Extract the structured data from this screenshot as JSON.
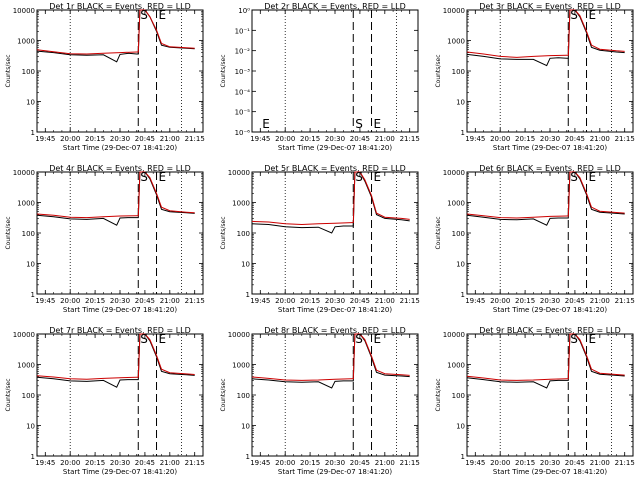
{
  "page": {},
  "chart_data": [
    {
      "type": "line",
      "title": "Det 1r BLACK = Events, RED = LLD",
      "xlabel": "Start Time (29-Dec-07 18:41:20)",
      "ylabel": "Counts/sec",
      "x_ticks": [
        "19:45",
        "20:00",
        "20:15",
        "20:30",
        "20:45",
        "21:00",
        "21:15"
      ],
      "y_ticks": [
        "1",
        "10",
        "100",
        "1000",
        "10000"
      ],
      "y_scale": "log",
      "ylim": [
        1,
        10000
      ],
      "dotted_lines": [
        "20:00",
        "21:07"
      ],
      "dashed_lines": [
        "20:41",
        "20:52"
      ],
      "markers": [
        {
          "label": "S",
          "at": "20:41"
        },
        {
          "label": "E",
          "at": "20:52"
        }
      ],
      "series": [
        {
          "color": "#000000",
          "x": [
            "19:40",
            "19:50",
            "20:00",
            "20:10",
            "20:20",
            "20:28",
            "20:30",
            "20:35",
            "20:40",
            "20:41",
            "20:42",
            "20:45",
            "20:48",
            "20:52",
            "20:55",
            "21:00",
            "21:10",
            "21:15"
          ],
          "y": [
            450,
            400,
            340,
            330,
            340,
            200,
            350,
            380,
            360,
            360,
            10000,
            10000,
            6000,
            2000,
            700,
            600,
            560,
            540
          ]
        },
        {
          "color": "#cc0000",
          "x": [
            "19:40",
            "19:50",
            "20:00",
            "20:10",
            "20:20",
            "20:30",
            "20:40",
            "20:41",
            "20:42",
            "20:45",
            "20:48",
            "20:52",
            "20:55",
            "21:00",
            "21:10",
            "21:15"
          ],
          "y": [
            500,
            430,
            370,
            360,
            380,
            400,
            420,
            420,
            10000,
            10000,
            6000,
            2200,
            800,
            620,
            580,
            560
          ]
        }
      ]
    },
    {
      "type": "line",
      "title": "Det 2r BLACK = Events, RED = LLD",
      "xlabel": "Start Time (29-Dec-07 18:41:20)",
      "ylabel": "Counts/sec",
      "x_ticks": [
        "19:45",
        "20:00",
        "20:15",
        "20:30",
        "20:45",
        "21:00",
        "21:15"
      ],
      "y_ticks": [
        "10⁻⁶",
        "10⁻⁵",
        "10⁻⁴",
        "10⁻³",
        "10⁻²",
        "10⁻¹",
        "10⁰"
      ],
      "y_scale": "log",
      "dotted_lines": [
        "20:00",
        "21:07"
      ],
      "dashed_lines": [
        "20:41",
        "20:52"
      ],
      "markers": [
        {
          "label": "E",
          "at": "19:45"
        },
        {
          "label": "S",
          "at": "20:41"
        },
        {
          "label": "E",
          "at": "20:52"
        }
      ],
      "series": []
    },
    {
      "type": "line",
      "title": "Det 3r BLACK = Events, RED = LLD",
      "xlabel": "Start Time (29-Dec-07 18:41:20)",
      "ylabel": "Counts/sec",
      "x_ticks": [
        "19:45",
        "20:00",
        "20:15",
        "20:30",
        "20:45",
        "21:00",
        "21:15"
      ],
      "y_ticks": [
        "1",
        "10",
        "100",
        "1000",
        "10000"
      ],
      "y_scale": "log",
      "ylim": [
        1,
        10000
      ],
      "dotted_lines": [
        "20:00",
        "21:07"
      ],
      "dashed_lines": [
        "20:41",
        "20:52"
      ],
      "markers": [
        {
          "label": "S",
          "at": "20:41"
        },
        {
          "label": "E",
          "at": "20:52"
        }
      ],
      "series": [
        {
          "color": "#000000",
          "x": [
            "19:40",
            "19:50",
            "20:00",
            "20:10",
            "20:20",
            "20:28",
            "20:30",
            "20:35",
            "20:40",
            "20:41",
            "20:42",
            "20:45",
            "20:48",
            "20:52",
            "20:55",
            "21:00",
            "21:10",
            "21:15"
          ],
          "y": [
            350,
            300,
            250,
            240,
            240,
            150,
            260,
            270,
            260,
            260,
            10000,
            10000,
            6000,
            1800,
            600,
            480,
            420,
            400
          ]
        },
        {
          "color": "#cc0000",
          "x": [
            "19:40",
            "19:50",
            "20:00",
            "20:10",
            "20:20",
            "20:30",
            "20:40",
            "20:41",
            "20:42",
            "20:45",
            "20:48",
            "20:52",
            "20:55",
            "21:00",
            "21:10",
            "21:15"
          ],
          "y": [
            420,
            360,
            300,
            280,
            300,
            320,
            330,
            330,
            10000,
            10000,
            6500,
            2000,
            700,
            520,
            460,
            440
          ]
        }
      ]
    },
    {
      "type": "line",
      "title": "Det 4r BLACK = Events, RED = LLD",
      "xlabel": "Start Time (29-Dec-07 18:41:20)",
      "ylabel": "Counts/sec",
      "x_ticks": [
        "19:45",
        "20:00",
        "20:15",
        "20:30",
        "20:45",
        "21:00",
        "21:15"
      ],
      "y_ticks": [
        "1",
        "10",
        "100",
        "1000",
        "10000"
      ],
      "y_scale": "log",
      "ylim": [
        1,
        10000
      ],
      "dotted_lines": [
        "20:00",
        "21:07"
      ],
      "dashed_lines": [
        "20:41",
        "20:52"
      ],
      "markers": [
        {
          "label": "S",
          "at": "20:41"
        },
        {
          "label": "E",
          "at": "20:52"
        }
      ],
      "series": [
        {
          "color": "#000000",
          "x": [
            "19:40",
            "19:50",
            "20:00",
            "20:10",
            "20:20",
            "20:28",
            "20:30",
            "20:35",
            "20:40",
            "20:41",
            "20:42",
            "20:45",
            "20:48",
            "20:52",
            "20:55",
            "21:00",
            "21:10",
            "21:15"
          ],
          "y": [
            380,
            340,
            290,
            280,
            300,
            180,
            310,
            320,
            320,
            320,
            10000,
            10000,
            6000,
            1800,
            600,
            500,
            460,
            440
          ]
        },
        {
          "color": "#cc0000",
          "x": [
            "19:40",
            "19:50",
            "20:00",
            "20:10",
            "20:20",
            "20:30",
            "20:40",
            "20:41",
            "20:42",
            "20:45",
            "20:48",
            "20:52",
            "20:55",
            "21:00",
            "21:10",
            "21:15"
          ],
          "y": [
            420,
            380,
            330,
            320,
            340,
            360,
            370,
            370,
            10000,
            10000,
            6500,
            2000,
            700,
            540,
            480,
            460
          ]
        }
      ]
    },
    {
      "type": "line",
      "title": "Det 5r BLACK = Events, RED = LLD",
      "xlabel": "Start Time (29-Dec-07 18:41:20)",
      "ylabel": "Counts/sec",
      "x_ticks": [
        "19:45",
        "20:00",
        "20:15",
        "20:30",
        "20:45",
        "21:00",
        "21:15"
      ],
      "y_ticks": [
        "1",
        "10",
        "100",
        "1000",
        "10000"
      ],
      "y_scale": "log",
      "ylim": [
        1,
        10000
      ],
      "dotted_lines": [
        "20:00",
        "21:07"
      ],
      "dashed_lines": [
        "20:41",
        "20:52"
      ],
      "markers": [
        {
          "label": "S",
          "at": "20:41"
        },
        {
          "label": "E",
          "at": "20:52"
        }
      ],
      "series": [
        {
          "color": "#000000",
          "x": [
            "19:40",
            "19:50",
            "20:00",
            "20:10",
            "20:20",
            "20:28",
            "20:30",
            "20:35",
            "20:40",
            "20:41",
            "20:42",
            "20:45",
            "20:48",
            "20:52",
            "20:55",
            "21:00",
            "21:10",
            "21:15"
          ],
          "y": [
            200,
            190,
            160,
            150,
            155,
            100,
            160,
            170,
            170,
            170,
            10000,
            10000,
            5000,
            1500,
            400,
            300,
            270,
            250
          ]
        },
        {
          "color": "#cc0000",
          "x": [
            "19:40",
            "19:50",
            "20:00",
            "20:10",
            "20:20",
            "20:30",
            "20:40",
            "20:41",
            "20:42",
            "20:45",
            "20:48",
            "20:52",
            "20:55",
            "21:00",
            "21:10",
            "21:15"
          ],
          "y": [
            240,
            230,
            200,
            190,
            200,
            210,
            220,
            220,
            10000,
            10000,
            5500,
            1700,
            450,
            330,
            300,
            280
          ]
        }
      ]
    },
    {
      "type": "line",
      "title": "Det 6r BLACK = Events, RED = LLD",
      "xlabel": "Start Time (29-Dec-07 18:41:20)",
      "ylabel": "Counts/sec",
      "x_ticks": [
        "19:45",
        "20:00",
        "20:15",
        "20:30",
        "20:45",
        "21:00",
        "21:15"
      ],
      "y_ticks": [
        "1",
        "10",
        "100",
        "1000",
        "10000"
      ],
      "y_scale": "log",
      "ylim": [
        1,
        10000
      ],
      "dotted_lines": [
        "20:00",
        "21:07"
      ],
      "dashed_lines": [
        "20:41",
        "20:52"
      ],
      "markers": [
        {
          "label": "S",
          "at": "20:41"
        },
        {
          "label": "E",
          "at": "20:52"
        }
      ],
      "series": [
        {
          "color": "#000000",
          "x": [
            "19:40",
            "19:50",
            "20:00",
            "20:10",
            "20:20",
            "20:28",
            "20:30",
            "20:35",
            "20:40",
            "20:41",
            "20:42",
            "20:45",
            "20:48",
            "20:52",
            "20:55",
            "21:00",
            "21:10",
            "21:15"
          ],
          "y": [
            380,
            330,
            280,
            270,
            290,
            180,
            300,
            310,
            310,
            310,
            10000,
            10000,
            6000,
            1800,
            600,
            480,
            440,
            420
          ]
        },
        {
          "color": "#cc0000",
          "x": [
            "19:40",
            "19:50",
            "20:00",
            "20:10",
            "20:20",
            "20:30",
            "20:40",
            "20:41",
            "20:42",
            "20:45",
            "20:48",
            "20:52",
            "20:55",
            "21:00",
            "21:10",
            "21:15"
          ],
          "y": [
            420,
            370,
            320,
            310,
            330,
            350,
            360,
            360,
            10000,
            10000,
            6500,
            2000,
            700,
            520,
            470,
            450
          ]
        }
      ]
    },
    {
      "type": "line",
      "title": "Det 7r BLACK = Events, RED = LLD",
      "xlabel": "Start Time (29-Dec-07 18:41:20)",
      "ylabel": "Counts/sec",
      "x_ticks": [
        "19:45",
        "20:00",
        "20:15",
        "20:30",
        "20:45",
        "21:00",
        "21:15"
      ],
      "y_ticks": [
        "1",
        "10",
        "100",
        "1000",
        "10000"
      ],
      "y_scale": "log",
      "ylim": [
        1,
        10000
      ],
      "dotted_lines": [
        "20:00",
        "21:07"
      ],
      "dashed_lines": [
        "20:41",
        "20:52"
      ],
      "markers": [
        {
          "label": "S",
          "at": "20:41"
        },
        {
          "label": "E",
          "at": "20:52"
        }
      ],
      "series": [
        {
          "color": "#000000",
          "x": [
            "19:40",
            "19:50",
            "20:00",
            "20:10",
            "20:20",
            "20:28",
            "20:30",
            "20:35",
            "20:40",
            "20:41",
            "20:42",
            "20:45",
            "20:48",
            "20:52",
            "20:55",
            "21:00",
            "21:10",
            "21:15"
          ],
          "y": [
            380,
            340,
            290,
            280,
            300,
            180,
            310,
            320,
            320,
            320,
            10000,
            10000,
            6000,
            1800,
            600,
            500,
            460,
            440
          ]
        },
        {
          "color": "#cc0000",
          "x": [
            "19:40",
            "19:50",
            "20:00",
            "20:10",
            "20:20",
            "20:30",
            "20:40",
            "20:41",
            "20:42",
            "20:45",
            "20:48",
            "20:52",
            "20:55",
            "21:00",
            "21:10",
            "21:15"
          ],
          "y": [
            430,
            390,
            340,
            330,
            350,
            370,
            380,
            380,
            10000,
            10000,
            6500,
            2000,
            700,
            540,
            490,
            470
          ]
        }
      ]
    },
    {
      "type": "line",
      "title": "Det 8r BLACK = Events, RED = LLD",
      "xlabel": "Start Time (29-Dec-07 18:41:20)",
      "ylabel": "Counts/sec",
      "x_ticks": [
        "19:45",
        "20:00",
        "20:15",
        "20:30",
        "20:45",
        "21:00",
        "21:15"
      ],
      "y_ticks": [
        "1",
        "10",
        "100",
        "1000",
        "10000"
      ],
      "y_scale": "log",
      "ylim": [
        1,
        10000
      ],
      "dotted_lines": [
        "20:00",
        "21:07"
      ],
      "dashed_lines": [
        "20:41",
        "20:52"
      ],
      "markers": [
        {
          "label": "S",
          "at": "20:41"
        },
        {
          "label": "E",
          "at": "20:52"
        }
      ],
      "series": [
        {
          "color": "#000000",
          "x": [
            "19:40",
            "19:50",
            "20:00",
            "20:10",
            "20:20",
            "20:28",
            "20:30",
            "20:35",
            "20:40",
            "20:41",
            "20:42",
            "20:45",
            "20:48",
            "20:52",
            "20:55",
            "21:00",
            "21:10",
            "21:15"
          ],
          "y": [
            340,
            310,
            270,
            260,
            270,
            170,
            280,
            290,
            290,
            290,
            10000,
            10000,
            6000,
            1700,
            550,
            450,
            420,
            400
          ]
        },
        {
          "color": "#cc0000",
          "x": [
            "19:40",
            "19:50",
            "20:00",
            "20:10",
            "20:20",
            "20:30",
            "20:40",
            "20:41",
            "20:42",
            "20:45",
            "20:48",
            "20:52",
            "20:55",
            "21:00",
            "21:10",
            "21:15"
          ],
          "y": [
            390,
            350,
            310,
            300,
            310,
            330,
            340,
            340,
            10000,
            10000,
            6500,
            1900,
            650,
            500,
            460,
            440
          ]
        }
      ]
    },
    {
      "type": "line",
      "title": "Det 9r BLACK = Events, RED = LLD",
      "xlabel": "Start Time (29-Dec-07 18:41:20)",
      "ylabel": "Counts/sec",
      "x_ticks": [
        "19:45",
        "20:00",
        "20:15",
        "20:30",
        "20:45",
        "21:00",
        "21:15"
      ],
      "y_ticks": [
        "1",
        "10",
        "100",
        "1000",
        "10000"
      ],
      "y_scale": "log",
      "ylim": [
        1,
        10000
      ],
      "dotted_lines": [
        "20:00",
        "21:07"
      ],
      "dashed_lines": [
        "20:41",
        "20:52"
      ],
      "markers": [
        {
          "label": "S",
          "at": "20:41"
        },
        {
          "label": "E",
          "at": "20:52"
        }
      ],
      "series": [
        {
          "color": "#000000",
          "x": [
            "19:40",
            "19:50",
            "20:00",
            "20:10",
            "20:20",
            "20:28",
            "20:30",
            "20:35",
            "20:40",
            "20:41",
            "20:42",
            "20:45",
            "20:48",
            "20:52",
            "20:55",
            "21:00",
            "21:10",
            "21:15"
          ],
          "y": [
            370,
            320,
            270,
            260,
            270,
            170,
            290,
            300,
            300,
            300,
            10000,
            10000,
            6000,
            1800,
            600,
            480,
            440,
            420
          ]
        },
        {
          "color": "#cc0000",
          "x": [
            "19:40",
            "19:50",
            "20:00",
            "20:10",
            "20:20",
            "20:30",
            "20:40",
            "20:41",
            "20:42",
            "20:45",
            "20:48",
            "20:52",
            "20:55",
            "21:00",
            "21:10",
            "21:15"
          ],
          "y": [
            410,
            360,
            310,
            300,
            310,
            330,
            340,
            340,
            10000,
            10000,
            6500,
            2000,
            700,
            520,
            470,
            450
          ]
        }
      ]
    }
  ]
}
